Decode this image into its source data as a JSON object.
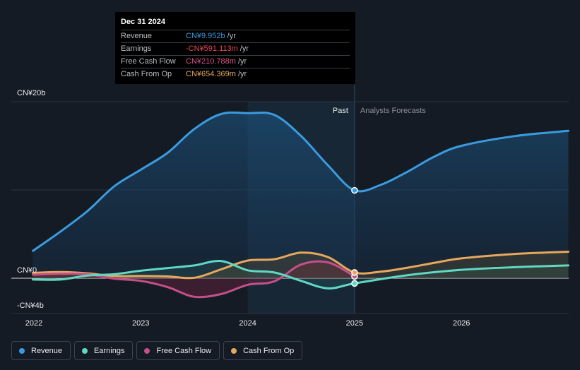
{
  "tooltip": {
    "date": "Dec 31 2024",
    "rows": [
      {
        "label": "Revenue",
        "value": "CN¥9.952b",
        "unit": "/yr",
        "color": "#3b9be0"
      },
      {
        "label": "Earnings",
        "value": "-CN¥591.113m",
        "unit": "/yr",
        "color": "#e8455f"
      },
      {
        "label": "Free Cash Flow",
        "value": "CN¥210.788m",
        "unit": "/yr",
        "color": "#d9528a"
      },
      {
        "label": "Cash From Op",
        "value": "CN¥654.369m",
        "unit": "/yr",
        "color": "#e7a75d"
      }
    ]
  },
  "legend": [
    {
      "label": "Revenue",
      "color": "#3b9be0"
    },
    {
      "label": "Earnings",
      "color": "#5fd8c4"
    },
    {
      "label": "Free Cash Flow",
      "color": "#c4508a"
    },
    {
      "label": "Cash From Op",
      "color": "#e7a75d"
    }
  ],
  "chart_data": {
    "type": "line",
    "title": "",
    "xlabel": "",
    "ylabel": "",
    "y_unit": "CN¥b",
    "ylim": [
      -4,
      20
    ],
    "xlim": [
      2022,
      2027
    ],
    "y_tick_labels": [
      {
        "value": 20,
        "label": "CN¥20b"
      },
      {
        "value": 0,
        "label": "CN¥0"
      },
      {
        "value": -4,
        "label": "-CN¥4b"
      }
    ],
    "x_tick_labels": [
      {
        "value": 2022,
        "label": "2022"
      },
      {
        "value": 2023,
        "label": "2023"
      },
      {
        "value": 2024,
        "label": "2024"
      },
      {
        "value": 2025,
        "label": "2025"
      },
      {
        "value": 2026,
        "label": "2026"
      }
    ],
    "divider_x": 2025,
    "highlight_start": 2024,
    "past_label": "Past",
    "forecast_label": "Analysts Forecasts",
    "series": [
      {
        "name": "Revenue",
        "color": "#3b9be0",
        "points": [
          [
            2021.99,
            3.1
          ],
          [
            2022.25,
            5.3
          ],
          [
            2022.5,
            7.6
          ],
          [
            2022.75,
            10.4
          ],
          [
            2023.0,
            12.3
          ],
          [
            2023.25,
            14.2
          ],
          [
            2023.5,
            16.9
          ],
          [
            2023.75,
            18.6
          ],
          [
            2024.0,
            18.7
          ],
          [
            2024.25,
            18.5
          ],
          [
            2024.5,
            16.1
          ],
          [
            2024.75,
            12.8
          ],
          [
            2025.0,
            9.95
          ],
          [
            2025.25,
            10.6
          ],
          [
            2025.5,
            12.1
          ],
          [
            2025.75,
            13.8
          ],
          [
            2026.0,
            15.0
          ],
          [
            2026.5,
            16.1
          ],
          [
            2027.0,
            16.7
          ]
        ],
        "marker": [
          2025.0,
          9.95
        ]
      },
      {
        "name": "Earnings",
        "color": "#5fd8c4",
        "points": [
          [
            2021.99,
            -0.15
          ],
          [
            2022.25,
            -0.15
          ],
          [
            2022.5,
            0.3
          ],
          [
            2022.75,
            0.45
          ],
          [
            2023.0,
            0.85
          ],
          [
            2023.25,
            1.15
          ],
          [
            2023.5,
            1.45
          ],
          [
            2023.75,
            1.95
          ],
          [
            2024.0,
            0.9
          ],
          [
            2024.25,
            0.65
          ],
          [
            2024.5,
            -0.3
          ],
          [
            2024.75,
            -1.15
          ],
          [
            2025.0,
            -0.59
          ],
          [
            2025.5,
            0.35
          ],
          [
            2026.0,
            0.95
          ],
          [
            2026.5,
            1.25
          ],
          [
            2027.0,
            1.45
          ]
        ],
        "marker": [
          2025.0,
          -0.59
        ]
      },
      {
        "name": "Free Cash Flow",
        "color": "#c4508a",
        "points": [
          [
            2021.99,
            0.4
          ],
          [
            2022.25,
            0.5
          ],
          [
            2022.5,
            0.45
          ],
          [
            2022.75,
            -0.05
          ],
          [
            2023.0,
            -0.3
          ],
          [
            2023.25,
            -1.0
          ],
          [
            2023.5,
            -2.1
          ],
          [
            2023.75,
            -1.8
          ],
          [
            2024.0,
            -0.75
          ],
          [
            2024.25,
            -0.35
          ],
          [
            2024.5,
            1.55
          ],
          [
            2024.75,
            1.8
          ],
          [
            2025.0,
            0.21
          ]
        ],
        "marker": [
          2025.0,
          0.21
        ]
      },
      {
        "name": "Cash From Op",
        "color": "#e7a75d",
        "points": [
          [
            2021.99,
            0.6
          ],
          [
            2022.25,
            0.7
          ],
          [
            2022.5,
            0.55
          ],
          [
            2022.75,
            0.25
          ],
          [
            2023.0,
            0.25
          ],
          [
            2023.25,
            0.2
          ],
          [
            2023.5,
            0.05
          ],
          [
            2023.75,
            1.0
          ],
          [
            2024.0,
            2.0
          ],
          [
            2024.25,
            2.15
          ],
          [
            2024.5,
            2.9
          ],
          [
            2024.75,
            2.4
          ],
          [
            2025.0,
            0.65
          ],
          [
            2025.25,
            0.75
          ],
          [
            2025.5,
            1.2
          ],
          [
            2025.75,
            1.75
          ],
          [
            2026.0,
            2.25
          ],
          [
            2026.5,
            2.75
          ],
          [
            2027.0,
            3.0
          ]
        ],
        "marker": [
          2025.0,
          0.65
        ]
      }
    ]
  }
}
